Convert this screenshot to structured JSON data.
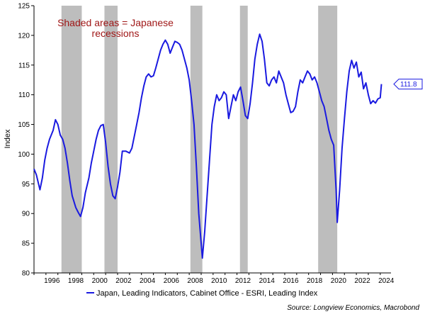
{
  "chart_data": {
    "type": "line",
    "ylabel": "Index",
    "ylim": [
      80,
      125
    ],
    "yticks": [
      "80",
      "85",
      "90",
      "95",
      "100",
      "105",
      "110",
      "115",
      "120",
      "125"
    ],
    "xlim": [
      1995,
      2024.9
    ],
    "xtick_labels": [
      "1996",
      "1998",
      "2000",
      "2002",
      "2004",
      "2006",
      "2008",
      "2010",
      "2012",
      "2014",
      "2016",
      "2018",
      "2020",
      "2022",
      "2024"
    ],
    "annotation": "Shaded areas = Japanese recessions",
    "annotation_lines": [
      "Shaded areas = Japanese",
      "recessions"
    ],
    "last_value_label": "111.8",
    "recessions": [
      {
        "start": 1997.3,
        "end": 1999.0
      },
      {
        "start": 2000.9,
        "end": 2002.0
      },
      {
        "start": 2008.1,
        "end": 2009.1
      },
      {
        "start": 2012.25,
        "end": 2012.9
      },
      {
        "start": 2018.8,
        "end": 2020.4
      }
    ],
    "series": [
      {
        "name": "Japan, Leading Indicators, Cabinet Office - ESRI, Leading Index",
        "color": "#1a1ae0",
        "points": [
          [
            1995.0,
            97.5
          ],
          [
            1995.2,
            96.5
          ],
          [
            1995.5,
            94.0
          ],
          [
            1995.7,
            96.0
          ],
          [
            1995.9,
            99.0
          ],
          [
            1996.1,
            101.0
          ],
          [
            1996.3,
            102.5
          ],
          [
            1996.6,
            104.0
          ],
          [
            1996.8,
            105.8
          ],
          [
            1997.0,
            105.0
          ],
          [
            1997.2,
            103.2
          ],
          [
            1997.4,
            102.5
          ],
          [
            1997.6,
            101.0
          ],
          [
            1997.8,
            98.5
          ],
          [
            1998.0,
            95.5
          ],
          [
            1998.2,
            93.0
          ],
          [
            1998.5,
            91.0
          ],
          [
            1998.7,
            90.2
          ],
          [
            1998.9,
            89.5
          ],
          [
            1999.1,
            91.0
          ],
          [
            1999.3,
            93.5
          ],
          [
            1999.6,
            96.0
          ],
          [
            1999.8,
            98.5
          ],
          [
            2000.0,
            100.5
          ],
          [
            2000.2,
            102.5
          ],
          [
            2000.4,
            104.0
          ],
          [
            2000.6,
            104.8
          ],
          [
            2000.8,
            105.0
          ],
          [
            2001.0,
            102.0
          ],
          [
            2001.2,
            98.0
          ],
          [
            2001.4,
            95.0
          ],
          [
            2001.6,
            93.0
          ],
          [
            2001.8,
            92.5
          ],
          [
            2002.0,
            94.5
          ],
          [
            2002.2,
            97.0
          ],
          [
            2002.4,
            100.5
          ],
          [
            2002.7,
            100.5
          ],
          [
            2003.0,
            100.2
          ],
          [
            2003.2,
            101.0
          ],
          [
            2003.5,
            104.0
          ],
          [
            2003.8,
            107.0
          ],
          [
            2004.0,
            109.5
          ],
          [
            2004.2,
            111.5
          ],
          [
            2004.4,
            113.0
          ],
          [
            2004.6,
            113.5
          ],
          [
            2004.8,
            113.0
          ],
          [
            2005.0,
            113.2
          ],
          [
            2005.2,
            114.5
          ],
          [
            2005.4,
            116.0
          ],
          [
            2005.6,
            117.5
          ],
          [
            2005.8,
            118.5
          ],
          [
            2006.0,
            119.2
          ],
          [
            2006.2,
            118.5
          ],
          [
            2006.4,
            117.0
          ],
          [
            2006.6,
            118.0
          ],
          [
            2006.8,
            119.0
          ],
          [
            2007.0,
            118.8
          ],
          [
            2007.2,
            118.5
          ],
          [
            2007.4,
            117.5
          ],
          [
            2007.6,
            116.0
          ],
          [
            2007.8,
            114.5
          ],
          [
            2008.0,
            112.5
          ],
          [
            2008.2,
            109.0
          ],
          [
            2008.4,
            105.0
          ],
          [
            2008.6,
            98.0
          ],
          [
            2008.8,
            90.0
          ],
          [
            2009.0,
            85.0
          ],
          [
            2009.1,
            82.5
          ],
          [
            2009.3,
            87.0
          ],
          [
            2009.5,
            93.0
          ],
          [
            2009.7,
            99.0
          ],
          [
            2009.9,
            105.0
          ],
          [
            2010.1,
            108.0
          ],
          [
            2010.3,
            110.0
          ],
          [
            2010.5,
            109.0
          ],
          [
            2010.7,
            109.5
          ],
          [
            2010.9,
            110.5
          ],
          [
            2011.1,
            110.0
          ],
          [
            2011.3,
            106.0
          ],
          [
            2011.5,
            108.0
          ],
          [
            2011.7,
            110.0
          ],
          [
            2011.9,
            109.0
          ],
          [
            2012.1,
            110.5
          ],
          [
            2012.3,
            111.3
          ],
          [
            2012.5,
            109.0
          ],
          [
            2012.7,
            106.5
          ],
          [
            2012.9,
            106.0
          ],
          [
            2013.1,
            108.5
          ],
          [
            2013.3,
            112.0
          ],
          [
            2013.5,
            116.0
          ],
          [
            2013.7,
            118.5
          ],
          [
            2013.9,
            120.2
          ],
          [
            2014.1,
            119.0
          ],
          [
            2014.3,
            116.0
          ],
          [
            2014.5,
            112.0
          ],
          [
            2014.7,
            111.5
          ],
          [
            2014.9,
            112.5
          ],
          [
            2015.1,
            113.0
          ],
          [
            2015.3,
            112.0
          ],
          [
            2015.5,
            114.0
          ],
          [
            2015.7,
            113.0
          ],
          [
            2015.9,
            112.0
          ],
          [
            2016.1,
            110.0
          ],
          [
            2016.3,
            108.5
          ],
          [
            2016.5,
            107.0
          ],
          [
            2016.7,
            107.2
          ],
          [
            2016.9,
            108.0
          ],
          [
            2017.1,
            110.5
          ],
          [
            2017.3,
            112.5
          ],
          [
            2017.5,
            112.0
          ],
          [
            2017.7,
            113.0
          ],
          [
            2017.9,
            114.0
          ],
          [
            2018.1,
            113.5
          ],
          [
            2018.3,
            112.5
          ],
          [
            2018.5,
            113.0
          ],
          [
            2018.7,
            112.0
          ],
          [
            2018.9,
            110.5
          ],
          [
            2019.1,
            109.0
          ],
          [
            2019.3,
            108.0
          ],
          [
            2019.5,
            106.0
          ],
          [
            2019.7,
            104.0
          ],
          [
            2019.9,
            102.5
          ],
          [
            2020.1,
            101.5
          ],
          [
            2020.3,
            94.0
          ],
          [
            2020.4,
            88.5
          ],
          [
            2020.6,
            94.0
          ],
          [
            2020.8,
            101.0
          ],
          [
            2021.0,
            106.0
          ],
          [
            2021.2,
            110.5
          ],
          [
            2021.4,
            114.0
          ],
          [
            2021.6,
            115.8
          ],
          [
            2021.8,
            114.5
          ],
          [
            2022.0,
            115.5
          ],
          [
            2022.2,
            113.0
          ],
          [
            2022.4,
            113.8
          ],
          [
            2022.6,
            111.0
          ],
          [
            2022.8,
            112.0
          ],
          [
            2023.0,
            110.0
          ],
          [
            2023.2,
            108.5
          ],
          [
            2023.4,
            109.0
          ],
          [
            2023.6,
            108.6
          ],
          [
            2023.8,
            109.3
          ],
          [
            2024.0,
            109.5
          ],
          [
            2024.1,
            111.8
          ]
        ]
      }
    ],
    "legend": "Japan, Leading Indicators, Cabinet Office - ESRI, Leading Index",
    "source": "Source: Longview Economics, Macrobond"
  }
}
